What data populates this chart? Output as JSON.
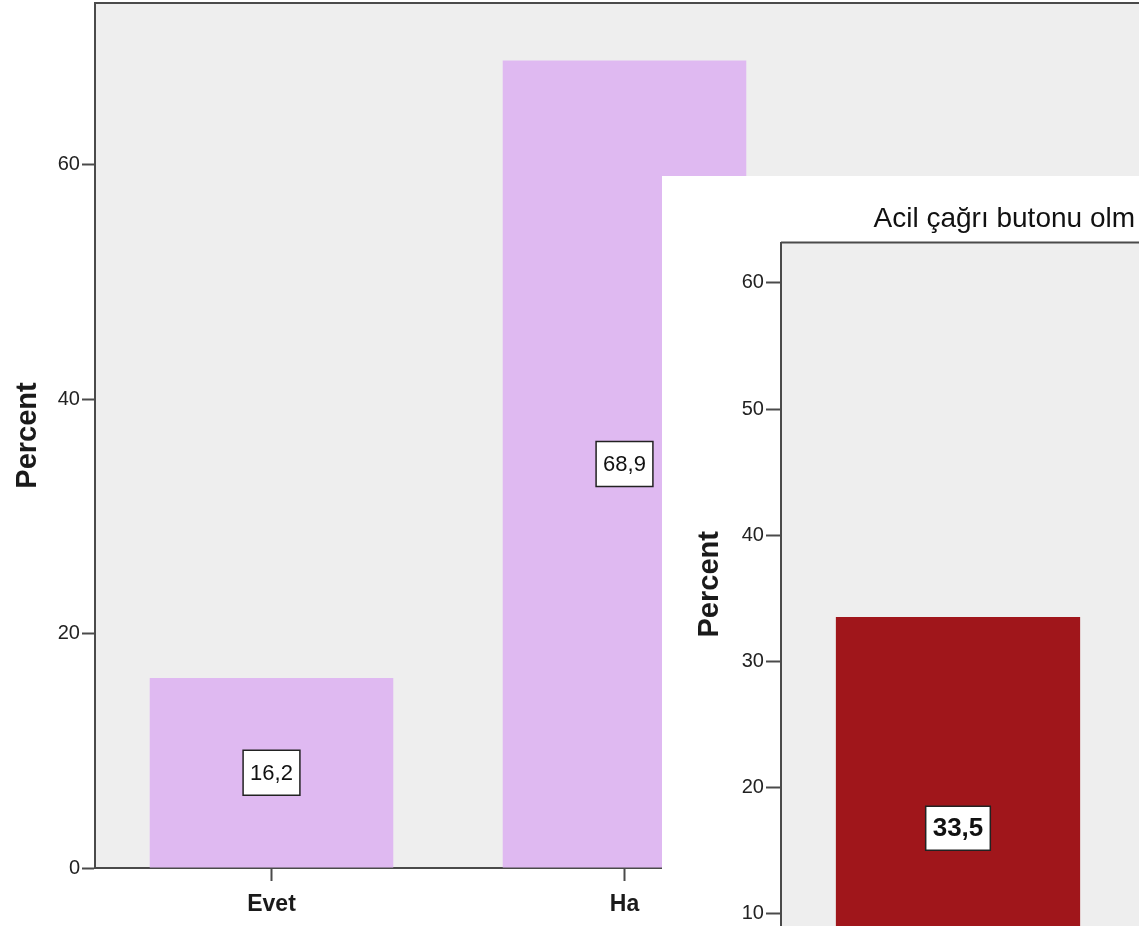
{
  "chart_data": [
    {
      "type": "bar",
      "ylabel": "Percent",
      "categories": [
        "Evet",
        "Ha"
      ],
      "values": [
        16.2,
        68.9
      ],
      "value_labels": [
        "16,2",
        "68,9"
      ],
      "color": "#dfb9f1",
      "ylim": [
        0,
        73.8
      ],
      "yticks": [
        0,
        20,
        40,
        60
      ]
    },
    {
      "type": "bar",
      "title": "Acil çağrı butonu olm",
      "ylabel": "Percent",
      "categories": [
        null
      ],
      "values": [
        33.5
      ],
      "value_labels": [
        "33,5"
      ],
      "color": "#a0161b",
      "ylim": [
        9,
        63.2
      ],
      "yticks": [
        10,
        20,
        30,
        40,
        50,
        60
      ]
    }
  ]
}
